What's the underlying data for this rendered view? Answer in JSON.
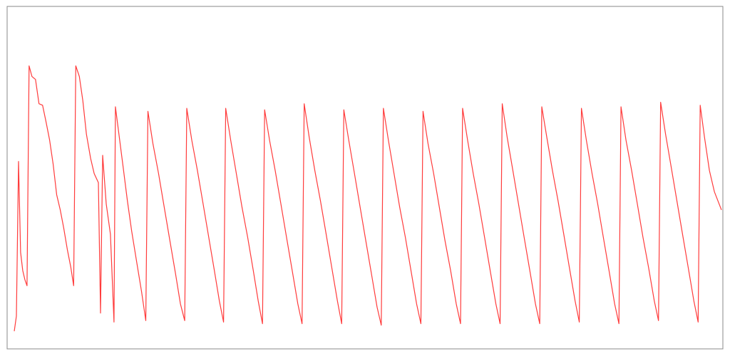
{
  "chart_data": {
    "type": "line",
    "title": "",
    "xlabel": "",
    "ylabel": "",
    "grid": false,
    "legend": "none",
    "xlim": [
      0,
      100
    ],
    "ylim": [
      0,
      100
    ],
    "series": [
      {
        "color": "#ff3b3b",
        "points": [
          [
            0.0,
            3.0
          ],
          [
            0.3,
            8.0
          ],
          [
            0.6,
            59.0
          ],
          [
            0.9,
            29.0
          ],
          [
            1.2,
            23.0
          ],
          [
            1.5,
            20.0
          ],
          [
            1.8,
            18.0
          ],
          [
            2.1,
            90.5
          ],
          [
            2.5,
            87.0
          ],
          [
            3.0,
            86.0
          ],
          [
            3.5,
            78.0
          ],
          [
            4.0,
            77.5
          ],
          [
            4.5,
            72.0
          ],
          [
            5.0,
            66.0
          ],
          [
            5.5,
            58.0
          ],
          [
            6.0,
            48.0
          ],
          [
            6.5,
            43.0
          ],
          [
            7.0,
            37.0
          ],
          [
            7.5,
            30.0
          ],
          [
            8.0,
            24.0
          ],
          [
            8.4,
            18.0
          ],
          [
            8.7,
            90.5
          ],
          [
            9.2,
            87.0
          ],
          [
            9.7,
            79.0
          ],
          [
            10.2,
            68.0
          ],
          [
            10.8,
            60.0
          ],
          [
            11.3,
            55.0
          ],
          [
            11.9,
            52.0
          ],
          [
            12.2,
            9.0
          ],
          [
            12.5,
            61.0
          ],
          [
            13.0,
            45.0
          ],
          [
            13.6,
            35.0
          ],
          [
            14.1,
            6.0
          ],
          [
            14.3,
            77.0
          ],
          [
            14.8,
            68.0
          ],
          [
            15.4,
            57.0
          ],
          [
            16.0,
            46.0
          ],
          [
            16.6,
            36.0
          ],
          [
            17.3,
            26.0
          ],
          [
            18.0,
            16.0
          ],
          [
            18.6,
            6.5
          ],
          [
            18.9,
            75.5
          ],
          [
            19.6,
            65.0
          ],
          [
            20.4,
            55.0
          ],
          [
            21.2,
            44.0
          ],
          [
            22.0,
            33.0
          ],
          [
            22.8,
            22.0
          ],
          [
            23.5,
            12.0
          ],
          [
            24.1,
            6.5
          ],
          [
            24.4,
            76.5
          ],
          [
            25.1,
            66.0
          ],
          [
            25.9,
            56.0
          ],
          [
            26.7,
            45.0
          ],
          [
            27.5,
            34.0
          ],
          [
            28.3,
            23.0
          ],
          [
            29.0,
            13.0
          ],
          [
            29.6,
            6.0
          ],
          [
            29.9,
            76.5
          ],
          [
            30.6,
            66.0
          ],
          [
            31.4,
            55.0
          ],
          [
            32.2,
            44.0
          ],
          [
            33.0,
            34.0
          ],
          [
            33.8,
            23.0
          ],
          [
            34.5,
            13.0
          ],
          [
            35.1,
            5.5
          ],
          [
            35.4,
            76.0
          ],
          [
            36.1,
            66.0
          ],
          [
            36.9,
            56.0
          ],
          [
            37.7,
            45.0
          ],
          [
            38.5,
            34.0
          ],
          [
            39.3,
            23.0
          ],
          [
            40.1,
            12.0
          ],
          [
            40.7,
            5.5
          ],
          [
            41.0,
            78.0
          ],
          [
            41.7,
            67.0
          ],
          [
            42.5,
            56.0
          ],
          [
            43.3,
            46.0
          ],
          [
            44.1,
            35.0
          ],
          [
            44.9,
            24.0
          ],
          [
            45.7,
            13.0
          ],
          [
            46.3,
            5.5
          ],
          [
            46.6,
            76.0
          ],
          [
            47.3,
            66.0
          ],
          [
            48.1,
            55.0
          ],
          [
            48.9,
            44.0
          ],
          [
            49.7,
            33.0
          ],
          [
            50.5,
            22.0
          ],
          [
            51.3,
            11.0
          ],
          [
            51.9,
            5.0
          ],
          [
            52.2,
            76.5
          ],
          [
            52.9,
            66.0
          ],
          [
            53.7,
            55.0
          ],
          [
            54.5,
            44.0
          ],
          [
            55.3,
            34.0
          ],
          [
            56.1,
            23.0
          ],
          [
            56.9,
            12.0
          ],
          [
            57.5,
            5.5
          ],
          [
            57.8,
            75.5
          ],
          [
            58.5,
            65.0
          ],
          [
            59.3,
            55.0
          ],
          [
            60.1,
            44.0
          ],
          [
            60.9,
            33.0
          ],
          [
            61.7,
            23.0
          ],
          [
            62.5,
            12.0
          ],
          [
            63.1,
            5.5
          ],
          [
            63.4,
            76.5
          ],
          [
            64.1,
            66.0
          ],
          [
            64.9,
            55.0
          ],
          [
            65.7,
            45.0
          ],
          [
            66.5,
            34.0
          ],
          [
            67.3,
            23.0
          ],
          [
            68.1,
            12.0
          ],
          [
            68.7,
            5.5
          ],
          [
            69.0,
            78.0
          ],
          [
            69.7,
            67.0
          ],
          [
            70.5,
            56.0
          ],
          [
            71.3,
            45.0
          ],
          [
            72.1,
            34.0
          ],
          [
            72.9,
            23.0
          ],
          [
            73.7,
            12.0
          ],
          [
            74.3,
            5.5
          ],
          [
            74.6,
            77.0
          ],
          [
            75.3,
            67.0
          ],
          [
            76.1,
            56.0
          ],
          [
            76.9,
            46.0
          ],
          [
            77.7,
            35.0
          ],
          [
            78.5,
            24.0
          ],
          [
            79.3,
            13.0
          ],
          [
            79.9,
            6.0
          ],
          [
            80.2,
            76.5
          ],
          [
            80.9,
            66.0
          ],
          [
            81.7,
            55.0
          ],
          [
            82.5,
            45.0
          ],
          [
            83.3,
            34.0
          ],
          [
            84.1,
            23.0
          ],
          [
            84.9,
            12.0
          ],
          [
            85.5,
            5.5
          ],
          [
            85.8,
            77.0
          ],
          [
            86.5,
            66.0
          ],
          [
            87.3,
            56.0
          ],
          [
            88.1,
            45.0
          ],
          [
            88.9,
            34.0
          ],
          [
            89.7,
            24.0
          ],
          [
            90.5,
            13.0
          ],
          [
            91.1,
            6.5
          ],
          [
            91.4,
            78.5
          ],
          [
            92.1,
            68.0
          ],
          [
            92.9,
            57.0
          ],
          [
            93.7,
            46.0
          ],
          [
            94.5,
            35.0
          ],
          [
            95.3,
            24.0
          ],
          [
            96.1,
            13.0
          ],
          [
            96.7,
            6.0
          ],
          [
            97.0,
            77.5
          ],
          [
            97.6,
            67.0
          ],
          [
            98.3,
            56.0
          ],
          [
            99.0,
            49.0
          ],
          [
            100.0,
            43.0
          ]
        ]
      }
    ]
  }
}
